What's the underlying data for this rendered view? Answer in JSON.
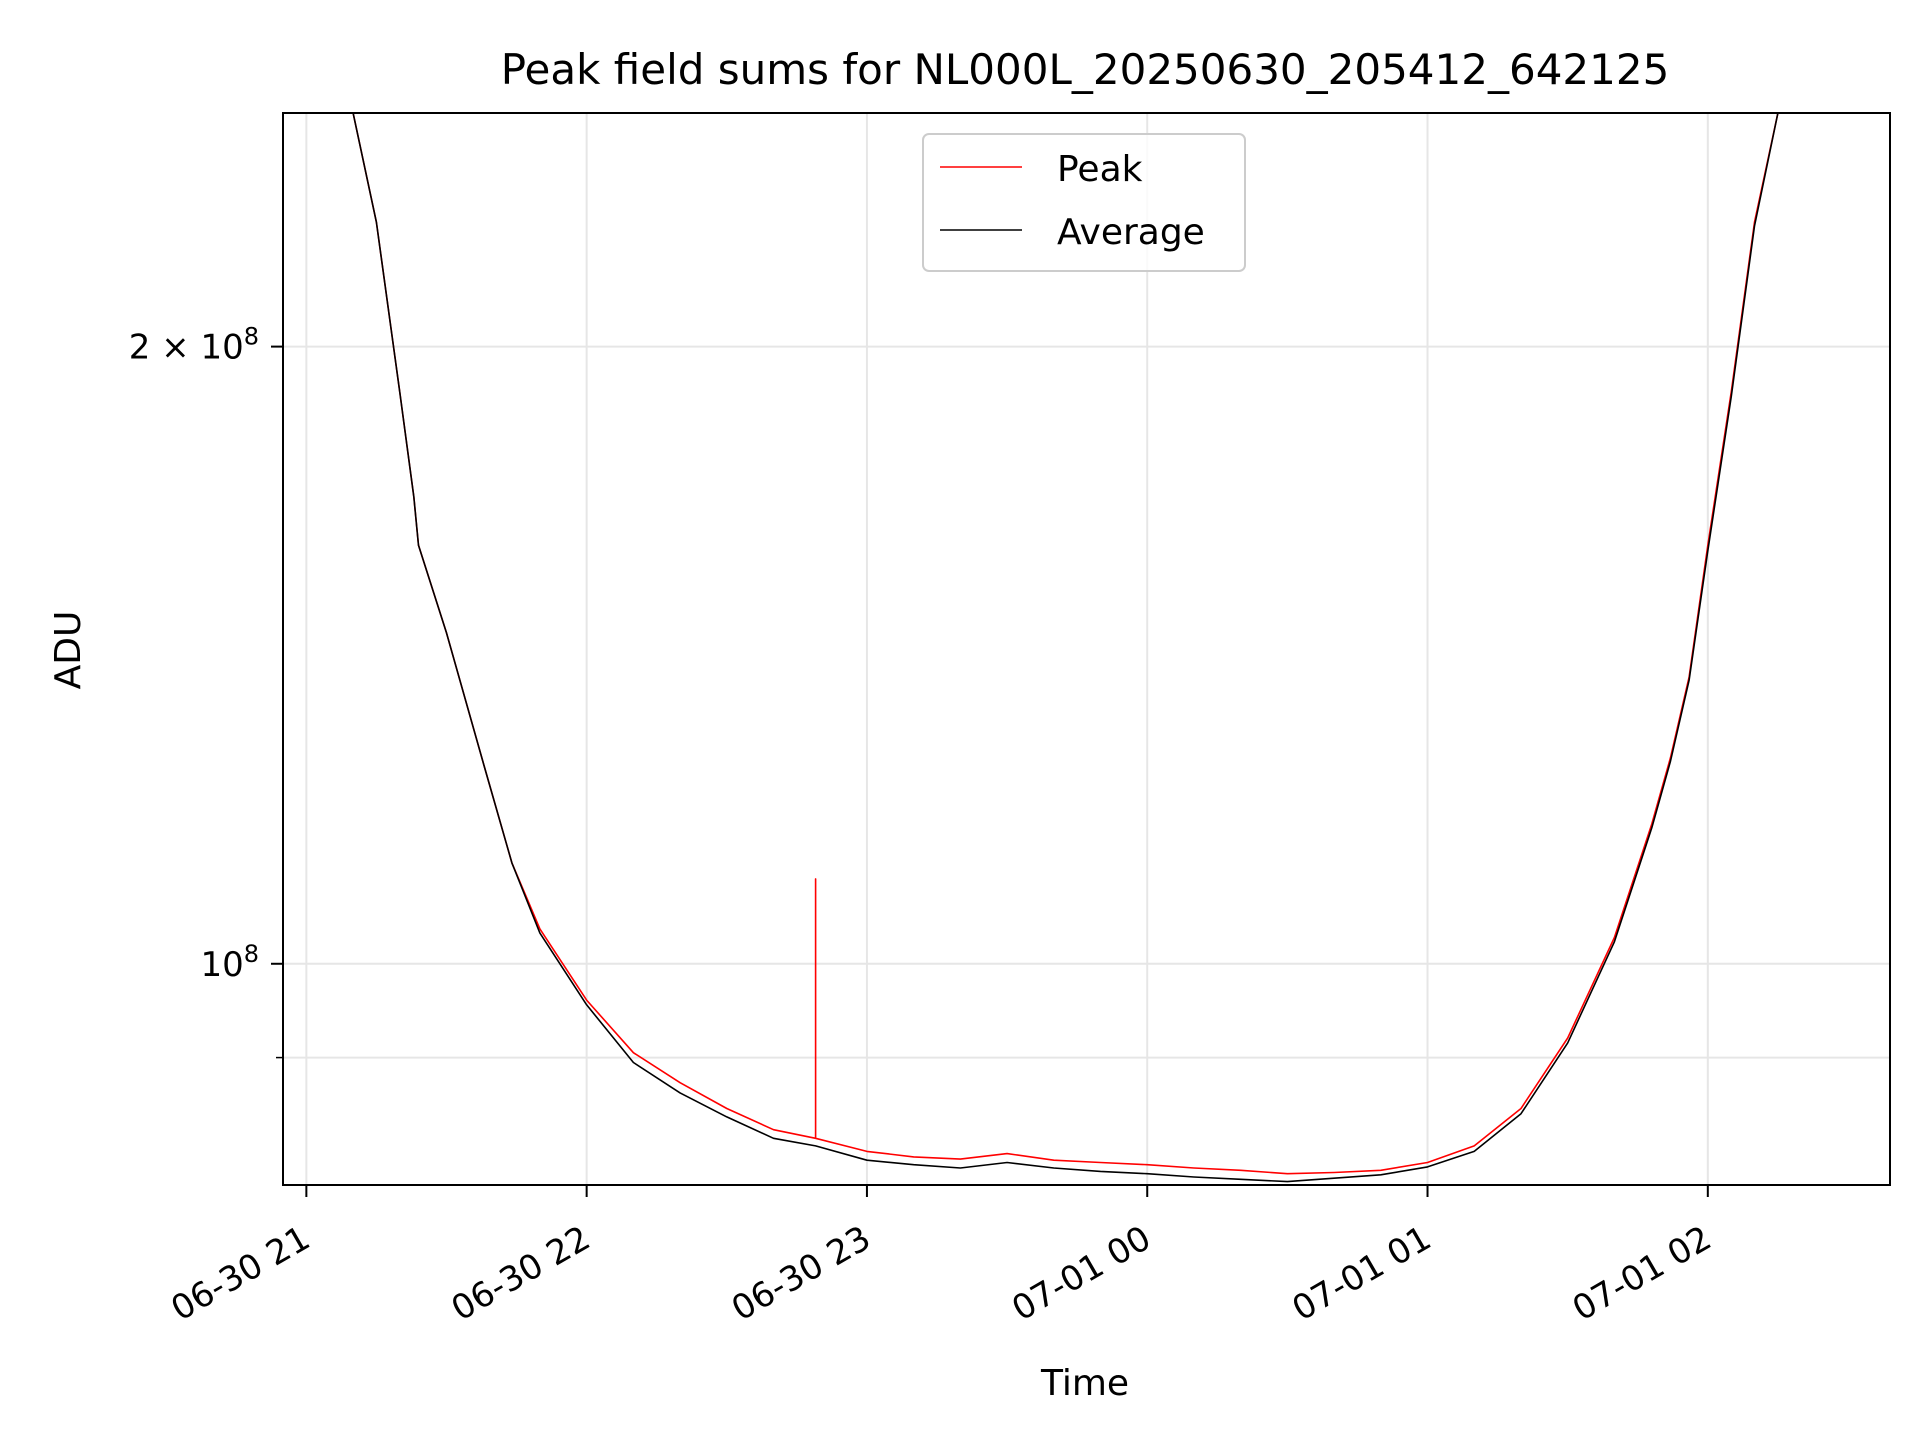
{
  "chart_data": {
    "type": "line",
    "title": "Peak field sums for NL000L_20250630_205412_642125",
    "xlabel": "Time",
    "ylabel": "ADU",
    "yscale": "log",
    "grid": true,
    "legend_position": "top-center",
    "xlim": [
      "2025-06-30 20:55",
      "2025-07-01 02:39"
    ],
    "ylim": [
      78000000,
      260000000
    ],
    "x_ticks": [
      {
        "value": "2025-06-30 21:00",
        "label": "06-30 21"
      },
      {
        "value": "2025-06-30 22:00",
        "label": "06-30 22"
      },
      {
        "value": "2025-06-30 23:00",
        "label": "06-30 23"
      },
      {
        "value": "2025-07-01 00:00",
        "label": "07-01 00"
      },
      {
        "value": "2025-07-01 01:00",
        "label": "07-01 01"
      },
      {
        "value": "2025-07-01 02:00",
        "label": "07-01 02"
      }
    ],
    "y_ticks": [
      {
        "value": 100000000,
        "base": "10",
        "exp": "8",
        "coef": ""
      },
      {
        "value": 200000000,
        "base": "10",
        "exp": "8",
        "coef": "2 × "
      }
    ],
    "y_minor_ticks": [
      90000000
    ],
    "series": [
      {
        "name": "Peak",
        "color": "#ff0000",
        "x": [
          "2025-06-30 21:10",
          "2025-06-30 21:15",
          "2025-06-30 21:20",
          "2025-06-30 21:23",
          "2025-06-30 21:24",
          "2025-06-30 21:30",
          "2025-06-30 21:38",
          "2025-06-30 21:44",
          "2025-06-30 21:50",
          "2025-06-30 22:00",
          "2025-06-30 22:10",
          "2025-06-30 22:20",
          "2025-06-30 22:30",
          "2025-06-30 22:40",
          "2025-06-30 22:49",
          "2025-06-30 22:49",
          "2025-06-30 22:49",
          "2025-06-30 23:00",
          "2025-06-30 23:10",
          "2025-06-30 23:20",
          "2025-06-30 23:30",
          "2025-06-30 23:40",
          "2025-06-30 23:50",
          "2025-07-01 00:00",
          "2025-07-01 00:10",
          "2025-07-01 00:20",
          "2025-07-01 00:30",
          "2025-07-01 00:40",
          "2025-07-01 00:50",
          "2025-07-01 01:00",
          "2025-07-01 01:10",
          "2025-07-01 01:20",
          "2025-07-01 01:30",
          "2025-07-01 01:40",
          "2025-07-01 01:48",
          "2025-07-01 01:52",
          "2025-07-01 01:56",
          "2025-07-01 02:00",
          "2025-07-01 02:05",
          "2025-07-01 02:10",
          "2025-07-01 02:15"
        ],
        "y": [
          260000000,
          230000000,
          190000000,
          169000000,
          160000000,
          145000000,
          125000000,
          112000000,
          104000000,
          96000000,
          90500000,
          87500000,
          85000000,
          83000000,
          82200000,
          110000000,
          82200000,
          81000000,
          80500000,
          80300000,
          80800000,
          80200000,
          80000000,
          79800000,
          79500000,
          79300000,
          79000000,
          79100000,
          79300000,
          80000000,
          81500000,
          85000000,
          92000000,
          103000000,
          117000000,
          126000000,
          138000000,
          160000000,
          190000000,
          230000000,
          260000000
        ]
      },
      {
        "name": "Average",
        "color": "#000000",
        "x": [
          "2025-06-30 21:10",
          "2025-06-30 21:15",
          "2025-06-30 21:20",
          "2025-06-30 21:23",
          "2025-06-30 21:24",
          "2025-06-30 21:30",
          "2025-06-30 21:38",
          "2025-06-30 21:44",
          "2025-06-30 21:50",
          "2025-06-30 22:00",
          "2025-06-30 22:10",
          "2025-06-30 22:20",
          "2025-06-30 22:30",
          "2025-06-30 22:40",
          "2025-06-30 22:49",
          "2025-06-30 23:00",
          "2025-06-30 23:10",
          "2025-06-30 23:20",
          "2025-06-30 23:30",
          "2025-06-30 23:40",
          "2025-06-30 23:50",
          "2025-07-01 00:00",
          "2025-07-01 00:10",
          "2025-07-01 00:20",
          "2025-07-01 00:30",
          "2025-07-01 00:40",
          "2025-07-01 00:50",
          "2025-07-01 01:00",
          "2025-07-01 01:10",
          "2025-07-01 01:20",
          "2025-07-01 01:30",
          "2025-07-01 01:40",
          "2025-07-01 01:48",
          "2025-07-01 01:52",
          "2025-07-01 01:56",
          "2025-07-01 02:00",
          "2025-07-01 02:05",
          "2025-07-01 02:10",
          "2025-07-01 02:15"
        ],
        "y": [
          260000000,
          230000000,
          190000000,
          169000000,
          160000000,
          145000000,
          125000000,
          112000000,
          103500000,
          95500000,
          89500000,
          86500000,
          84200000,
          82200000,
          81500000,
          80200000,
          79800000,
          79500000,
          80000000,
          79500000,
          79200000,
          79000000,
          78700000,
          78500000,
          78300000,
          78600000,
          78900000,
          79600000,
          81000000,
          84500000,
          91500000,
          102500000,
          116500000,
          125500000,
          137500000,
          159000000,
          189000000,
          229000000,
          260000000
        ]
      }
    ]
  }
}
